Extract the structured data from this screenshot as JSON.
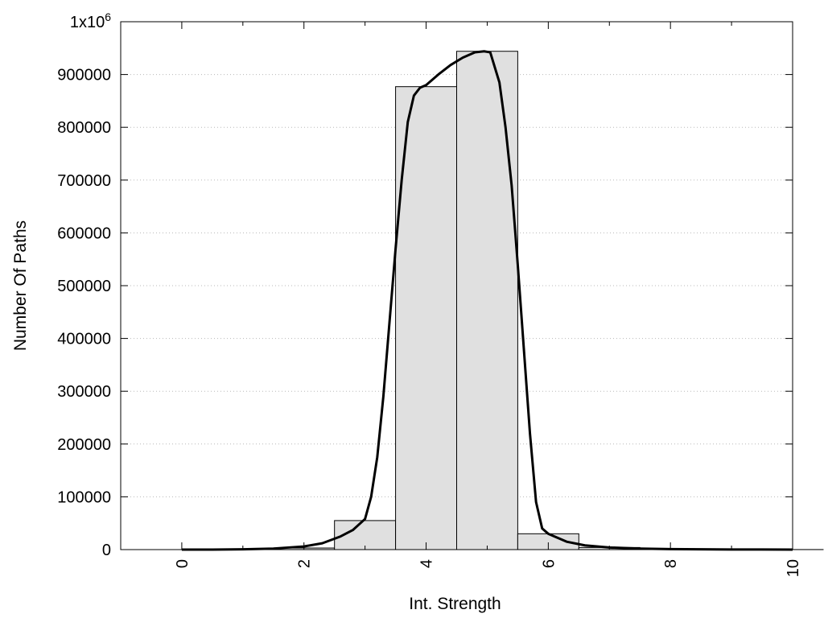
{
  "chart_data": {
    "type": "bar",
    "title": "",
    "xlabel": "Int. Strength",
    "ylabel": "Number Of Paths",
    "xlim": [
      -1,
      10
    ],
    "ylim": [
      0,
      1000000
    ],
    "x_ticks": [
      "0",
      "2",
      "4",
      "6",
      "8",
      "10"
    ],
    "y_ticks": [
      "0",
      "100000",
      "200000",
      "300000",
      "400000",
      "500000",
      "600000",
      "700000",
      "800000",
      "900000"
    ],
    "y_top_label": {
      "base": "1x10",
      "exponent": "6"
    },
    "grid": "horizontal dotted",
    "bar_color": "#e0e0e0",
    "bar_width": 1,
    "bars": {
      "x": [
        0,
        1,
        2,
        3,
        4,
        5,
        6,
        7,
        8,
        9,
        10
      ],
      "values": [
        0,
        500,
        3000,
        55000,
        877000,
        944000,
        30000,
        4000,
        1000,
        300,
        100
      ]
    },
    "series": [
      {
        "type": "line",
        "x": [
          0,
          0.5,
          1,
          1.5,
          2,
          2.3,
          2.6,
          2.8,
          3.0,
          3.1,
          3.2,
          3.3,
          3.4,
          3.5,
          3.6,
          3.7,
          3.8,
          3.9,
          4.0,
          4.2,
          4.4,
          4.6,
          4.8,
          4.95,
          5.05,
          5.2,
          5.3,
          5.4,
          5.5,
          5.6,
          5.7,
          5.8,
          5.9,
          6.0,
          6.3,
          6.6,
          7,
          7.5,
          8,
          8.5,
          9,
          9.5,
          10
        ],
        "values": [
          0,
          0,
          500,
          2000,
          6000,
          12000,
          25000,
          37000,
          58000,
          100000,
          175000,
          290000,
          430000,
          570000,
          700000,
          810000,
          860000,
          875000,
          880000,
          900000,
          918000,
          932000,
          942000,
          944000,
          942000,
          885000,
          800000,
          690000,
          540000,
          380000,
          220000,
          90000,
          40000,
          30000,
          15000,
          8000,
          4000,
          2000,
          1000,
          500,
          200,
          100,
          0
        ]
      }
    ]
  }
}
